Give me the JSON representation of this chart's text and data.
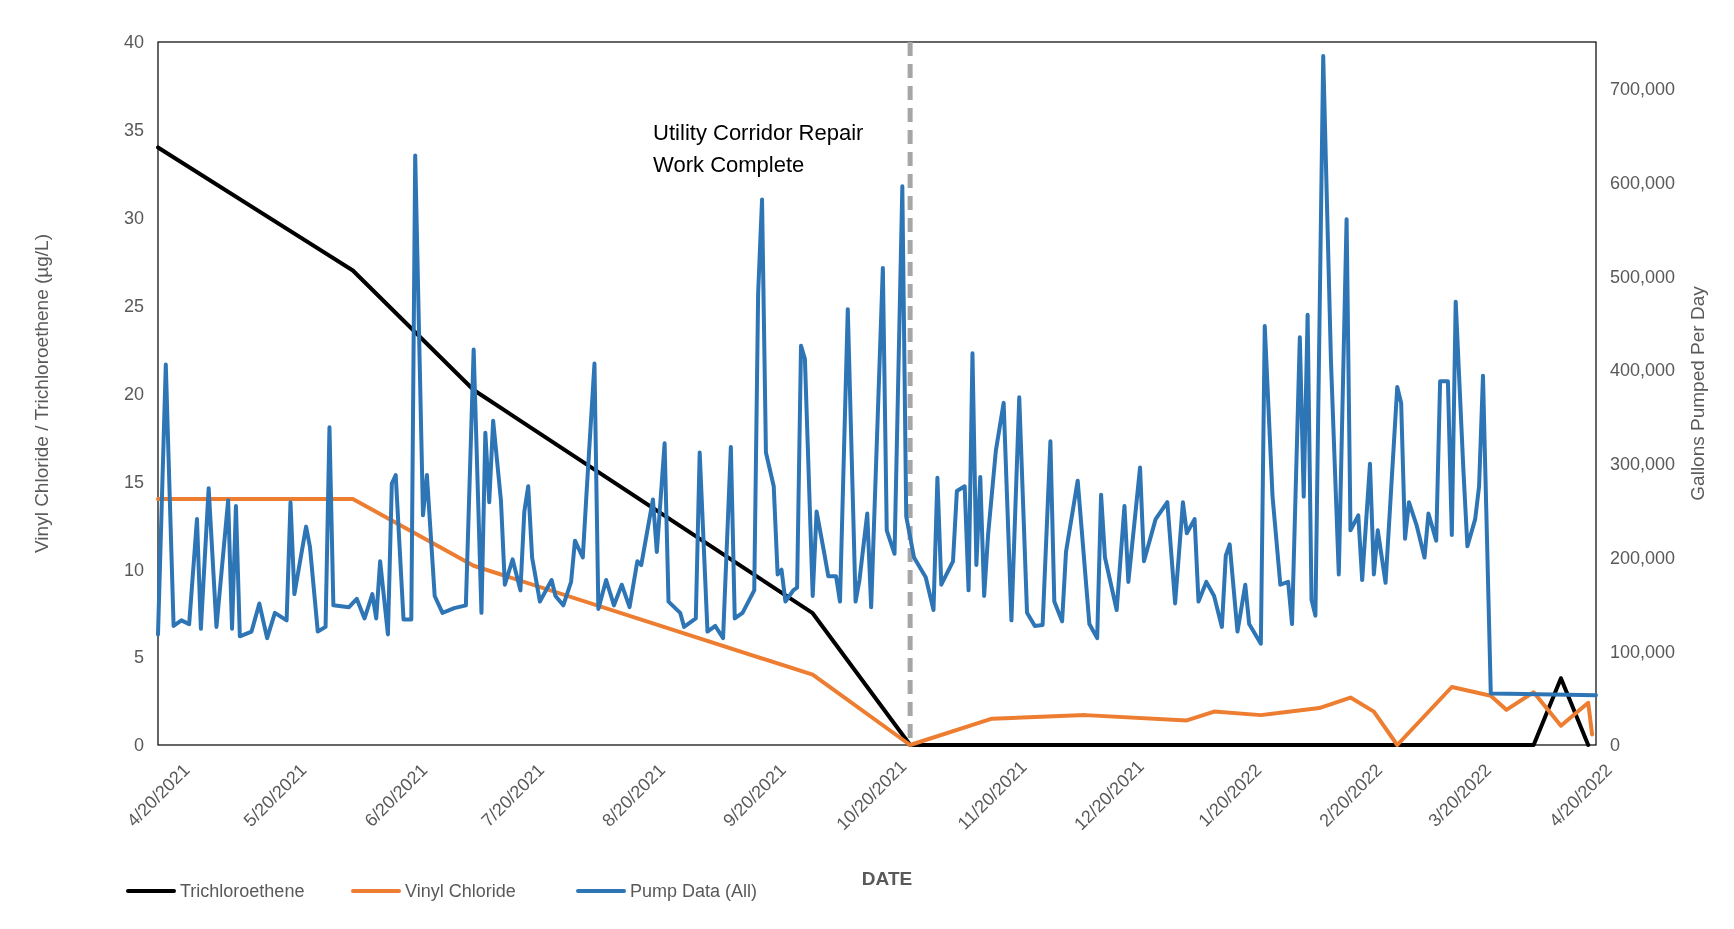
{
  "chart_data": {
    "type": "line",
    "xlabel": "DATE",
    "ylabel": "Vinyl Chloride / Trichloroethene (µg/L)",
    "y2label": "Gallons Pumped Per Day",
    "xlim": [
      "2021-04-20",
      "2022-04-24"
    ],
    "xticks": [
      {
        "value": "2021-04-20",
        "label": "4/20/2021"
      },
      {
        "value": "2021-05-20",
        "label": "5/20/2021"
      },
      {
        "value": "2021-06-20",
        "label": "6/20/2021"
      },
      {
        "value": "2021-07-20",
        "label": "7/20/2021"
      },
      {
        "value": "2021-08-20",
        "label": "8/20/2021"
      },
      {
        "value": "2021-09-20",
        "label": "9/20/2021"
      },
      {
        "value": "2021-10-20",
        "label": "10/20/2021"
      },
      {
        "value": "2021-11-20",
        "label": "11/20/2021"
      },
      {
        "value": "2021-12-20",
        "label": "12/20/2021"
      },
      {
        "value": "2022-01-20",
        "label": "1/20/2022"
      },
      {
        "value": "2022-02-20",
        "label": "2/20/2022"
      },
      {
        "value": "2022-03-20",
        "label": "3/20/2022"
      },
      {
        "value": "2022-04-20",
        "label": "4/20/2022"
      }
    ],
    "ylim": [
      0,
      40
    ],
    "yticks": [
      0,
      5,
      10,
      15,
      20,
      25,
      30,
      35,
      40
    ],
    "y2lim": [
      0,
      750000
    ],
    "y2ticks": [
      {
        "value": 0,
        "label": "0"
      },
      {
        "value": 100000,
        "label": "100,000"
      },
      {
        "value": 200000,
        "label": "200,000"
      },
      {
        "value": 300000,
        "label": "300,000"
      },
      {
        "value": 400000,
        "label": "400,000"
      },
      {
        "value": 500000,
        "label": "500,000"
      },
      {
        "value": 600000,
        "label": "600,000"
      },
      {
        "value": 700000,
        "label": "700,000"
      }
    ],
    "grid": false,
    "legend": "bottom",
    "ref_lines": [
      {
        "axis": "x",
        "value": "2021-10-30",
        "label": "Utility Corridor Repair Work Complete",
        "color": "#a6a6a6",
        "line_style": "dashed"
      }
    ],
    "series": [
      {
        "name": "Trichloroethene",
        "color": "#000000",
        "x": [
          "2021-04-20",
          "2021-06-09",
          "2021-07-10",
          "2021-10-05",
          "2021-10-30",
          "2022-04-08",
          "2022-04-15",
          "2022-04-22"
        ],
        "values": [
          34,
          27,
          20.2,
          7.5,
          0,
          0,
          3.8,
          0
        ]
      },
      {
        "name": "Vinyl Chloride",
        "color": "#ed7d31",
        "x": [
          "2021-04-20",
          "2021-06-09",
          "2021-07-10",
          "2021-10-05",
          "2021-10-30",
          "2021-11-20",
          "2021-12-14",
          "2022-01-09",
          "2022-01-16",
          "2022-01-28",
          "2022-02-12",
          "2022-02-20",
          "2022-02-26",
          "2022-03-04",
          "2022-03-18",
          "2022-03-28",
          "2022-04-01",
          "2022-04-08",
          "2022-04-15",
          "2022-04-22",
          "2022-04-23"
        ],
        "values": [
          14,
          14,
          10.2,
          4.0,
          0,
          1.5,
          1.7,
          1.4,
          1.9,
          1.7,
          2.1,
          2.7,
          1.9,
          0,
          3.3,
          2.8,
          2.0,
          3.0,
          1.1,
          2.4,
          0.6
        ]
      },
      {
        "name": "Pump Data (All)",
        "color": "#2e75b6",
        "axis": "y2",
        "x": [
          "2021-04-20",
          "2021-04-22",
          "2021-04-24",
          "2021-04-26",
          "2021-04-28",
          "2021-04-30",
          "2021-05-01",
          "2021-05-03",
          "2021-05-05",
          "2021-05-08",
          "2021-05-09",
          "2021-05-10",
          "2021-05-11",
          "2021-05-14",
          "2021-05-16",
          "2021-05-18",
          "2021-05-20",
          "2021-05-23",
          "2021-05-24",
          "2021-05-25",
          "2021-05-28",
          "2021-05-29",
          "2021-05-31",
          "2021-06-02",
          "2021-06-03",
          "2021-06-04",
          "2021-06-08",
          "2021-06-10",
          "2021-06-12",
          "2021-06-14",
          "2021-06-15",
          "2021-06-16",
          "2021-06-18",
          "2021-06-19",
          "2021-06-20",
          "2021-06-22",
          "2021-06-24",
          "2021-06-25",
          "2021-06-27",
          "2021-06-28",
          "2021-06-30",
          "2021-07-02",
          "2021-07-05",
          "2021-07-08",
          "2021-07-10",
          "2021-07-12",
          "2021-07-13",
          "2021-07-14",
          "2021-07-15",
          "2021-07-17",
          "2021-07-18",
          "2021-07-20",
          "2021-07-22",
          "2021-07-23",
          "2021-07-24",
          "2021-07-25",
          "2021-07-27",
          "2021-07-30",
          "2021-07-31",
          "2021-08-02",
          "2021-08-04",
          "2021-08-05",
          "2021-08-07",
          "2021-08-08",
          "2021-08-10",
          "2021-08-11",
          "2021-08-13",
          "2021-08-15",
          "2021-08-17",
          "2021-08-19",
          "2021-08-21",
          "2021-08-22",
          "2021-08-25",
          "2021-08-26",
          "2021-08-28",
          "2021-08-29",
          "2021-09-01",
          "2021-09-02",
          "2021-09-05",
          "2021-09-06",
          "2021-09-08",
          "2021-09-10",
          "2021-09-12",
          "2021-09-14",
          "2021-09-15",
          "2021-09-17",
          "2021-09-20",
          "2021-09-21",
          "2021-09-22",
          "2021-09-23",
          "2021-09-25",
          "2021-09-26",
          "2021-09-27",
          "2021-09-28",
          "2021-09-30",
          "2021-10-01",
          "2021-10-02",
          "2021-10-03",
          "2021-10-05",
          "2021-10-06",
          "2021-10-08",
          "2021-10-09",
          "2021-10-11",
          "2021-10-12",
          "2021-10-14",
          "2021-10-16",
          "2021-10-17",
          "2021-10-19",
          "2021-10-20",
          "2021-10-23",
          "2021-10-24",
          "2021-10-26",
          "2021-10-28",
          "2021-10-29",
          "2021-10-31",
          "2021-11-03",
          "2021-11-05",
          "2021-11-06",
          "2021-11-07",
          "2021-11-10",
          "2021-11-11",
          "2021-11-13",
          "2021-11-14",
          "2021-11-15",
          "2021-11-16",
          "2021-11-17",
          "2021-11-18",
          "2021-11-19",
          "2021-11-21",
          "2021-11-23",
          "2021-11-25",
          "2021-11-27",
          "2021-11-29",
          "2021-12-01",
          "2021-12-03",
          "2021-12-05",
          "2021-12-06",
          "2021-12-08",
          "2021-12-09",
          "2021-12-12",
          "2021-12-15",
          "2021-12-17",
          "2021-12-18",
          "2021-12-19",
          "2021-12-22",
          "2021-12-24",
          "2021-12-25",
          "2021-12-27",
          "2021-12-28",
          "2021-12-29",
          "2022-01-01",
          "2022-01-04",
          "2022-01-06",
          "2022-01-08",
          "2022-01-09",
          "2022-01-11",
          "2022-01-12",
          "2022-01-14",
          "2022-01-16",
          "2022-01-18",
          "2022-01-19",
          "2022-01-20",
          "2022-01-22",
          "2022-01-24",
          "2022-01-25",
          "2022-01-28",
          "2022-01-29",
          "2022-01-31",
          "2022-02-02",
          "2022-02-04",
          "2022-02-05",
          "2022-02-07",
          "2022-02-08",
          "2022-02-09",
          "2022-02-10",
          "2022-02-11",
          "2022-02-13",
          "2022-02-15",
          "2022-02-17",
          "2022-02-19",
          "2022-02-20",
          "2022-02-22",
          "2022-02-23",
          "2022-02-25",
          "2022-02-26",
          "2022-02-27",
          "2022-03-01",
          "2022-03-04",
          "2022-03-05",
          "2022-03-06",
          "2022-03-07",
          "2022-03-09",
          "2022-03-11",
          "2022-03-12",
          "2022-03-14",
          "2022-03-15",
          "2022-03-17",
          "2022-03-18",
          "2022-03-19",
          "2022-03-21",
          "2022-03-22",
          "2022-03-24",
          "2022-03-25",
          "2022-03-26",
          "2022-03-28",
          "2022-04-24"
        ],
        "values": [
          118000,
          406000,
          127000,
          133000,
          129000,
          241000,
          124000,
          274000,
          126000,
          261000,
          124000,
          255000,
          116000,
          121000,
          151000,
          114000,
          141000,
          133000,
          259000,
          161000,
          233000,
          211000,
          121000,
          126000,
          339000,
          149000,
          147000,
          156000,
          135000,
          161000,
          135000,
          196000,
          118000,
          279000,
          288000,
          134000,
          134000,
          629000,
          245000,
          288000,
          159000,
          141000,
          146000,
          149000,
          422000,
          141000,
          333000,
          259000,
          346000,
          261000,
          171000,
          198000,
          165000,
          249000,
          276000,
          200000,
          153000,
          176000,
          159000,
          149000,
          174000,
          218000,
          200000,
          271000,
          407000,
          145000,
          176000,
          149000,
          171000,
          147000,
          196000,
          192000,
          262000,
          206000,
          322000,
          153000,
          141000,
          126000,
          135000,
          312000,
          121000,
          127000,
          114000,
          318000,
          135000,
          141000,
          165000,
          482000,
          582000,
          312000,
          276000,
          182000,
          187000,
          153000,
          165000,
          168000,
          426000,
          412000,
          159000,
          249000,
          204000,
          180000,
          180000,
          153000,
          465000,
          153000,
          176000,
          247000,
          147000,
          509000,
          229000,
          204000,
          596000,
          244000,
          200000,
          179000,
          144000,
          285000,
          171000,
          196000,
          271000,
          276000,
          165000,
          418000,
          192000,
          286000,
          159000,
          224000,
          314000,
          365000,
          133000,
          371000,
          141000,
          127000,
          128000,
          324000,
          153000,
          132000,
          206000,
          282000,
          129000,
          114000,
          267000,
          200000,
          144000,
          255000,
          174000,
          255000,
          296000,
          196000,
          241000,
          259000,
          151000,
          259000,
          226000,
          241000,
          153000,
          174000,
          159000,
          126000,
          202000,
          214000,
          121000,
          171000,
          129000,
          108000,
          447000,
          265000,
          171000,
          174000,
          129000,
          435000,
          265000,
          459000,
          155000,
          138000,
          735000,
          408000,
          182000,
          561000,
          229000,
          245000,
          176000,
          300000,
          182000,
          229000,
          173000,
          382000,
          365000,
          220000,
          259000,
          234000,
          200000,
          247000,
          218000,
          388000,
          388000,
          224000,
          473000,
          291000,
          212000,
          241000,
          276000,
          394000,
          55000,
          53000
        ]
      }
    ]
  }
}
